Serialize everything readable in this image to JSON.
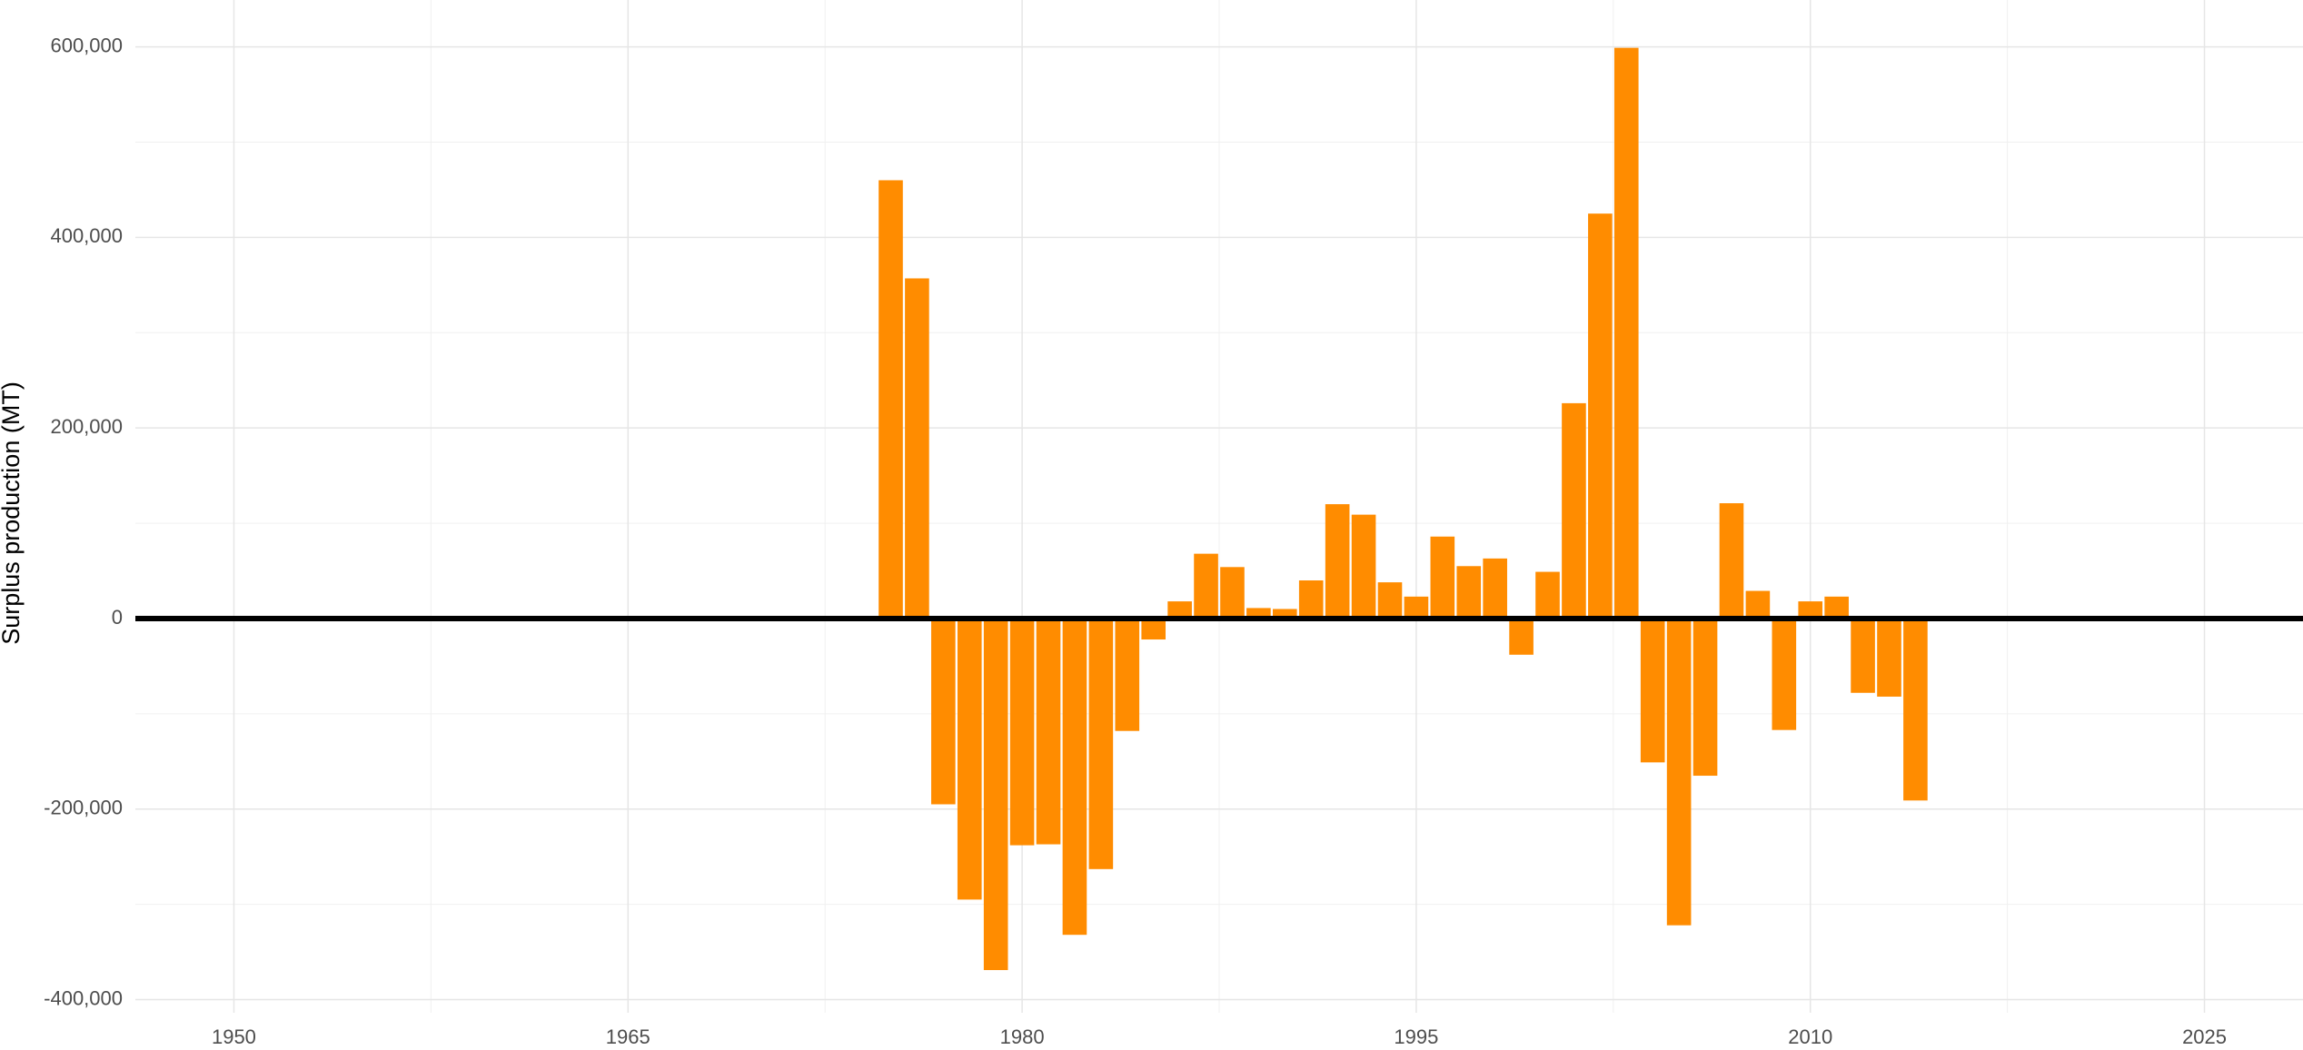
{
  "chart_data": {
    "type": "bar",
    "y_label": "Surplus production (MT)",
    "color": "#ff8c00",
    "x": [
      1975,
      1976,
      1977,
      1978,
      1979,
      1980,
      1981,
      1982,
      1983,
      1984,
      1985,
      1986,
      1987,
      1988,
      1989,
      1990,
      1991,
      1992,
      1993,
      1994,
      1995,
      1996,
      1997,
      1998,
      1999,
      2000,
      2001,
      2002,
      2003,
      2004,
      2005,
      2006,
      2007,
      2008,
      2009,
      2010,
      2011,
      2012,
      2013,
      2014
    ],
    "values": [
      460000,
      357000,
      -195000,
      -295000,
      -369000,
      -238000,
      -237000,
      -332000,
      -263000,
      -118000,
      -22000,
      18000,
      68000,
      54000,
      11000,
      10000,
      40000,
      120000,
      109000,
      38000,
      23000,
      86000,
      55000,
      63000,
      -38000,
      49000,
      226000,
      425000,
      599000,
      -151000,
      -322000,
      -165000,
      121000,
      29000,
      -117000,
      18000,
      23000,
      -78000,
      -82000,
      -191000
    ],
    "xlim": [
      1946.25,
      2028.75
    ],
    "xticks": [
      1950,
      1965,
      1980,
      1995,
      2010,
      2025
    ],
    "ylim": [
      -413800,
      649200
    ],
    "yticks": [
      {
        "value": -400000,
        "label": "-400,000"
      },
      {
        "value": -200000,
        "label": "-200,000"
      },
      0,
      {
        "value": 200000,
        "label": "200,000"
      },
      {
        "value": 400000,
        "label": "400,000"
      },
      {
        "value": 600000,
        "label": "600,000"
      }
    ],
    "grid": true
  }
}
